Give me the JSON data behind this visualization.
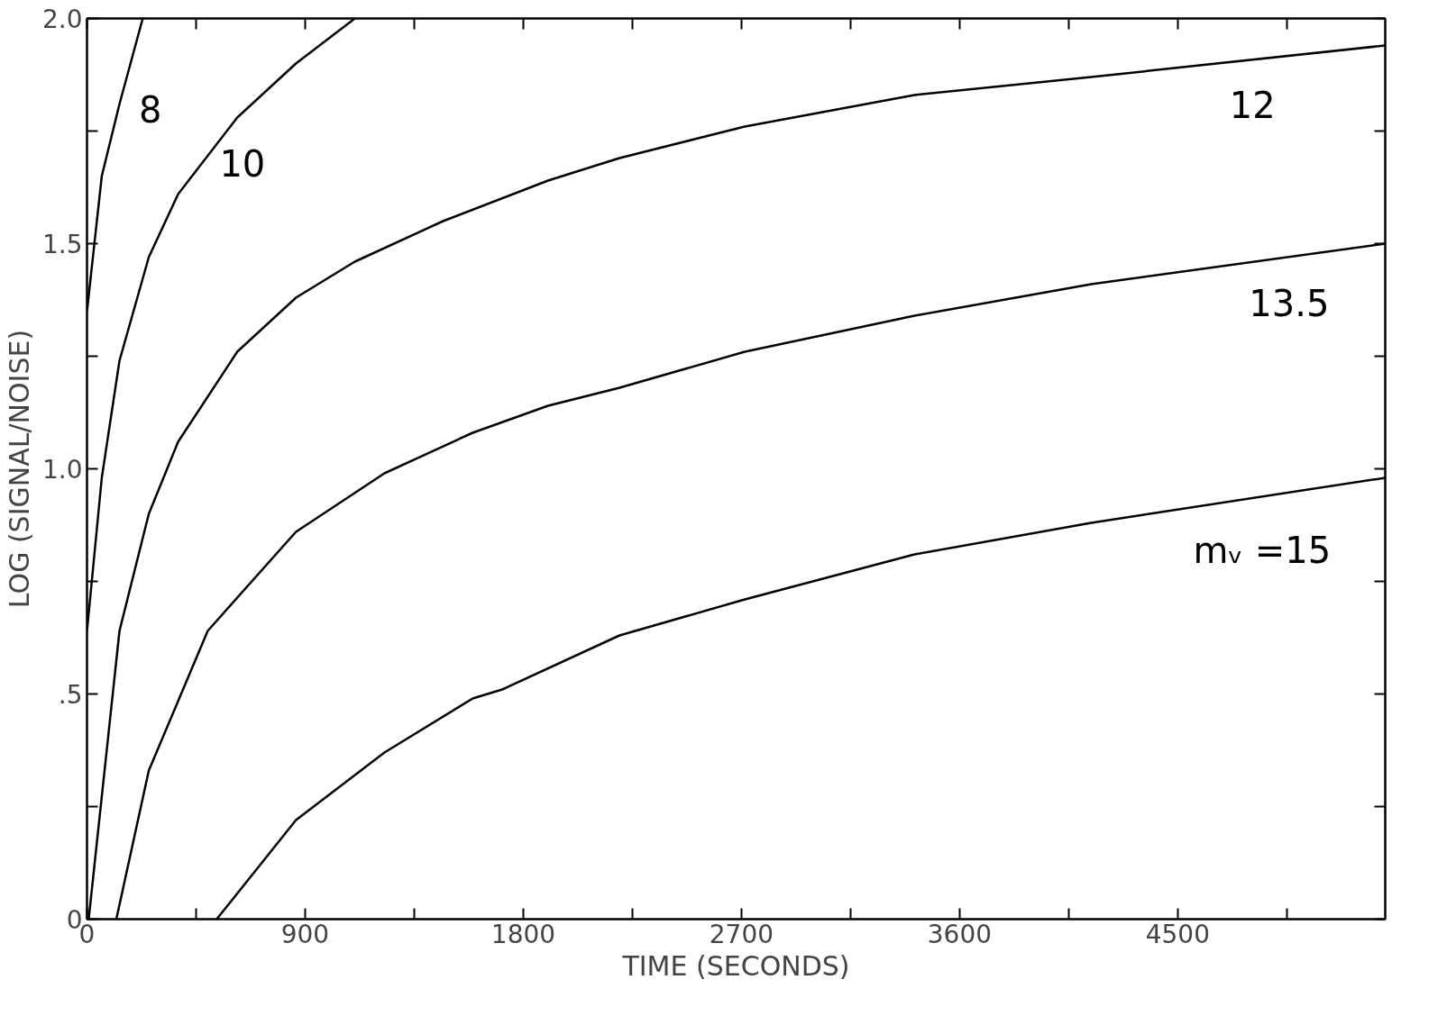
{
  "chart_data": {
    "type": "line",
    "xlabel": "TIME (SECONDS)",
    "ylabel": "LOG (SIGNAL/NOISE)",
    "xlim": [
      0,
      5356
    ],
    "ylim": [
      0,
      2.0
    ],
    "xticks": [
      0,
      {
        "value": 450,
        "label": null
      },
      900,
      {
        "value": 1350,
        "label": null
      },
      1800,
      {
        "value": 2250,
        "label": null
      },
      2700,
      {
        "value": 3150,
        "label": null
      },
      3600,
      {
        "value": 4050,
        "label": null
      },
      4500,
      {
        "value": 4950,
        "label": null
      }
    ],
    "yticks": [
      0,
      {
        "value": 0.25,
        "label": null
      },
      {
        "value": 0.5,
        "label": ".5"
      },
      {
        "value": 0.75,
        "label": null
      },
      {
        "value": 1.0,
        "label": "1.0"
      },
      {
        "value": 1.25,
        "label": null
      },
      {
        "value": 1.5,
        "label": "1.5"
      },
      {
        "value": 1.75,
        "label": null
      },
      {
        "value": 2.0,
        "label": "2.0"
      }
    ],
    "grid": false,
    "legend": false,
    "marker": "none",
    "line_style": "solid",
    "series": [
      {
        "name": "8",
        "color": "#000000",
        "x": [
          0,
          61,
          134,
          230
        ],
        "values": [
          1.35,
          1.65,
          1.81,
          2.0
        ]
      },
      {
        "name": "10",
        "color": "#000000",
        "x": [
          0,
          61,
          134,
          255,
          376,
          620,
          862,
          1105
        ],
        "values": [
          0.64,
          0.98,
          1.24,
          1.47,
          1.61,
          1.78,
          1.9,
          2.0
        ]
      },
      {
        "name": "12",
        "color": "#000000",
        "x": [
          7,
          134,
          255,
          376,
          620,
          862,
          1105,
          1469,
          1902,
          2197,
          2714,
          3414,
          4143,
          5356
        ],
        "values": [
          0,
          0.64,
          0.9,
          1.06,
          1.26,
          1.38,
          1.46,
          1.55,
          1.64,
          1.69,
          1.76,
          1.83,
          1.87,
          1.94
        ]
      },
      {
        "name": "13.5",
        "color": "#000000",
        "x": [
          121,
          255,
          498,
          862,
          1227,
          1591,
          1902,
          2197,
          2714,
          3414,
          4143,
          5356
        ],
        "values": [
          0,
          0.33,
          0.64,
          0.86,
          0.99,
          1.08,
          1.14,
          1.18,
          1.26,
          1.34,
          1.41,
          1.5
        ]
      },
      {
        "name": "mᵥ =15",
        "color": "#000000",
        "x": [
          535,
          862,
          1227,
          1591,
          1713,
          2197,
          2714,
          3414,
          4143,
          5356
        ],
        "values": [
          0,
          0.22,
          0.37,
          0.49,
          0.51,
          0.63,
          0.71,
          0.81,
          0.88,
          0.98
        ]
      }
    ]
  }
}
